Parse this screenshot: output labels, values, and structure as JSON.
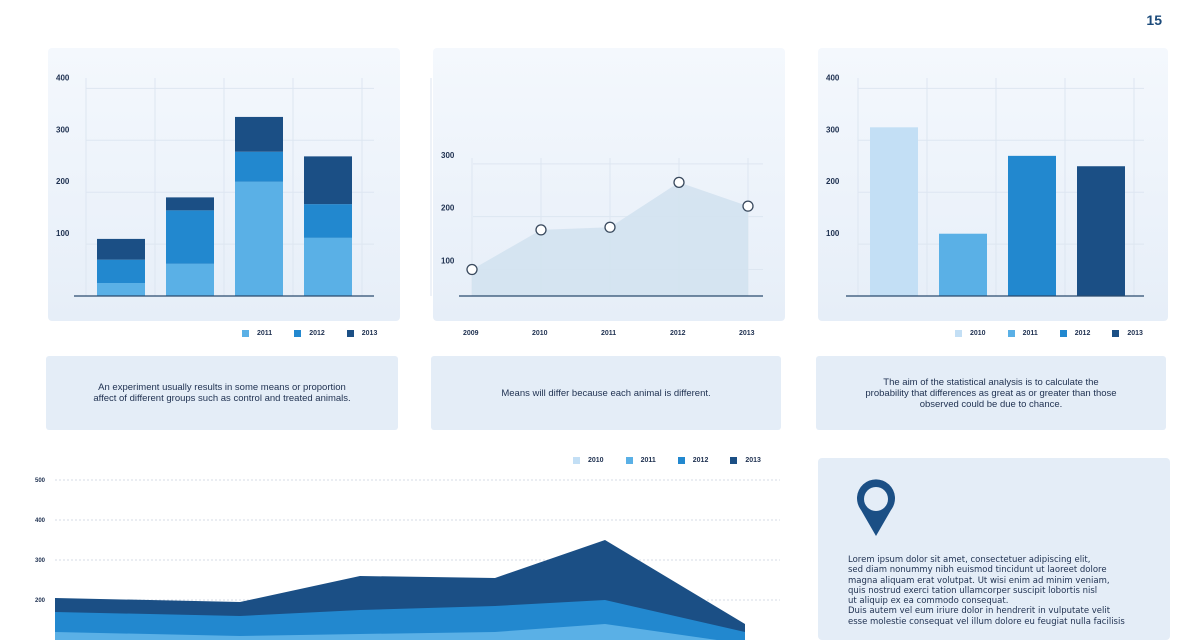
{
  "page_number": "15",
  "colors": {
    "c2010": "#c3dff5",
    "c2011": "#5ab0e6",
    "c2012": "#2288cf",
    "c2013": "#1b4f85",
    "pin": "#1b4f85"
  },
  "captions": [
    "An experiment usually results in some means or proportion affect of different groups such as control and treated animals.",
    "Means will differ because each animal is different.",
    "The aim of the statistical analysis is to calculate the probability that differences as great as or greater than those observed could be due to chance."
  ],
  "info_card": {
    "icon": "location-pin-icon",
    "lines": [
      "Lorem ipsum dolor sit amet, consectetuer adipiscing elit,",
      "sed diam nonummy nibh euismod tincidunt ut laoreet dolore",
      "magna aliquam erat volutpat. Ut wisi enim ad minim veniam,",
      "quis nostrud exerci tation ullamcorper suscipit lobortis nisl",
      "ut aliquip ex ea commodo consequat.",
      "Duis autem vel eum iriure dolor in hendrerit in vulputate velit",
      "esse molestie consequat vel illum dolore eu feugiat nulla facilisis"
    ]
  },
  "chart_data": [
    {
      "type": "bar",
      "stacked": true,
      "categories": [
        "",
        "",
        "",
        ""
      ],
      "yticks": [
        "100",
        "200",
        "300",
        "400"
      ],
      "ylim": [
        0,
        420
      ],
      "legend": [
        "2011",
        "2012",
        "2013"
      ],
      "legend_position": "bottom",
      "series": [
        {
          "name": "2011",
          "values": [
            25,
            62,
            220,
            112
          ]
        },
        {
          "name": "2012",
          "values": [
            45,
            103,
            58,
            65
          ]
        },
        {
          "name": "2013",
          "values": [
            40,
            25,
            67,
            92
          ]
        }
      ]
    },
    {
      "type": "area",
      "x": [
        "2009",
        "2010",
        "2011",
        "2012",
        "2013"
      ],
      "values": [
        100,
        175,
        180,
        265,
        220
      ],
      "yticks": [
        "100",
        "200",
        "300"
      ],
      "ylim": [
        65,
        330
      ]
    },
    {
      "type": "bar",
      "categories": [
        "2010",
        "2011",
        "2012",
        "2013"
      ],
      "values": [
        325,
        120,
        270,
        250
      ],
      "yticks": [
        "100",
        "200",
        "300",
        "400"
      ],
      "ylim": [
        0,
        420
      ],
      "legend": [
        "2010",
        "2011",
        "2012",
        "2013"
      ],
      "legend_position": "bottom"
    },
    {
      "type": "area",
      "stacked": true,
      "yticks": [
        "200",
        "300",
        "400",
        "500"
      ],
      "ylim": [
        0,
        500
      ],
      "legend": [
        "2010",
        "2011",
        "2012",
        "2013"
      ],
      "legend_position": "top-right",
      "x": [
        0,
        1,
        2,
        3,
        4,
        5
      ],
      "series": [
        {
          "name": "2010",
          "values": [
            0,
            0,
            0,
            0,
            0,
            0
          ]
        },
        {
          "name": "2011",
          "values": [
            120,
            110,
            115,
            120,
            140,
            90
          ]
        },
        {
          "name": "2012",
          "values": [
            170,
            160,
            175,
            185,
            200,
            120
          ]
        },
        {
          "name": "2013",
          "values": [
            205,
            195,
            260,
            255,
            350,
            140
          ]
        }
      ]
    }
  ]
}
